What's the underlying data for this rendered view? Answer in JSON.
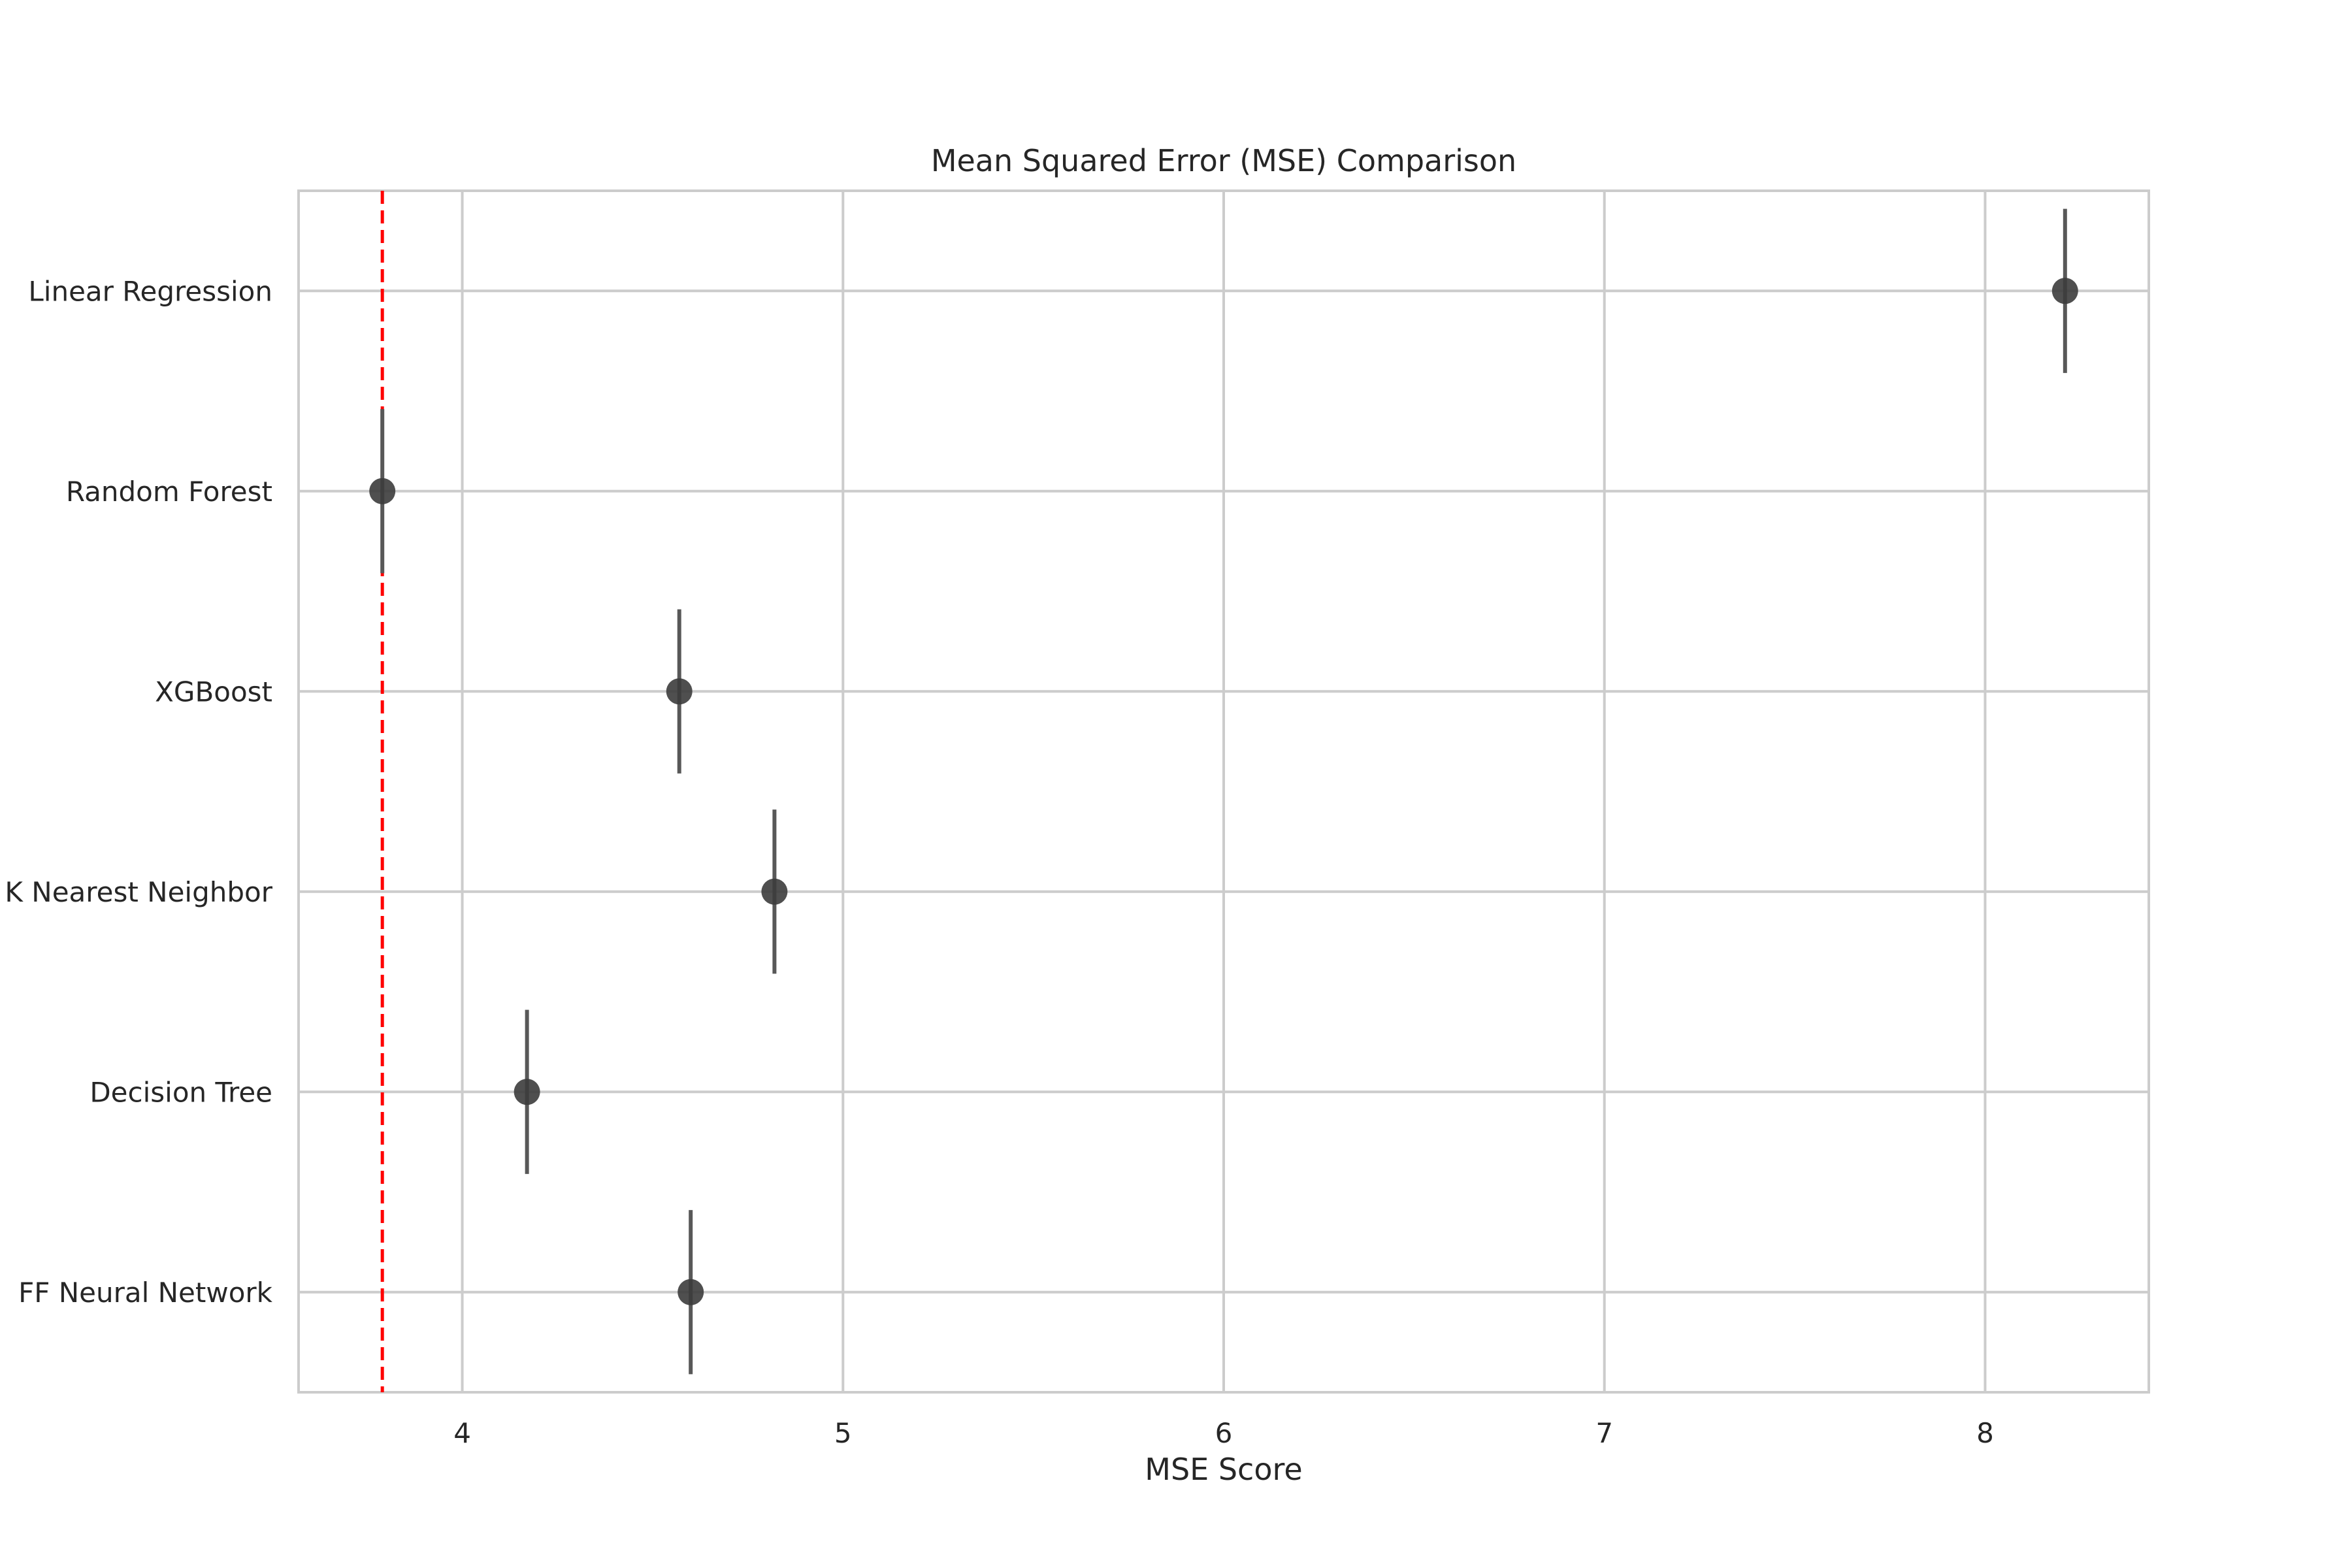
{
  "chart_data": {
    "type": "scatter",
    "title": "Mean Squared Error (MSE) Comparison",
    "xlabel": "MSE Score",
    "ylabel": "",
    "xlim": [
      3.57,
      8.43
    ],
    "xticks": [
      "4",
      "5",
      "6",
      "7",
      "8"
    ],
    "xtick_values": [
      4,
      5,
      6,
      7,
      8
    ],
    "categories": [
      "Linear Regression",
      "Random Forest",
      "XGBoost",
      "K Nearest Neighbor",
      "Decision Tree",
      "FF Neural Network"
    ],
    "values": [
      8.21,
      3.79,
      4.57,
      4.82,
      4.17,
      4.6
    ],
    "reference_line": {
      "value": 3.79,
      "color": "#ff0000",
      "style": "dashed"
    },
    "point_color": "#3c3c3c",
    "errorbar_color": "#585858",
    "grid": true
  }
}
